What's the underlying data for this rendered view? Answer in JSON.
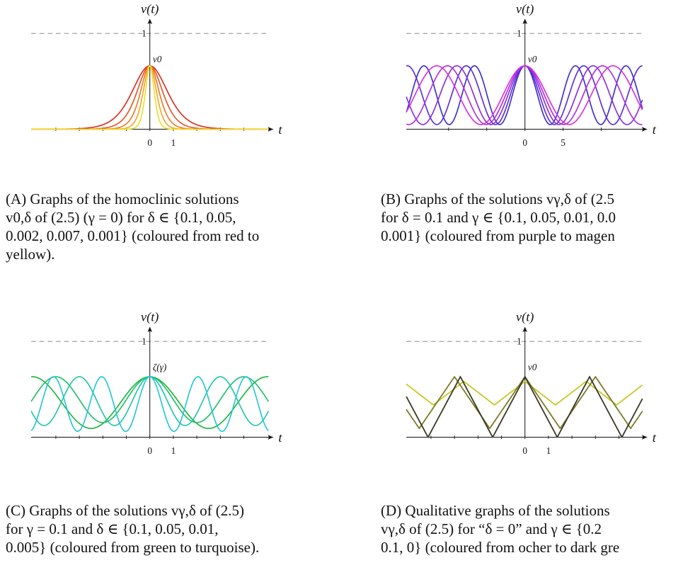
{
  "figures": [
    {
      "key": "a",
      "ylabel": "v(t)",
      "xlabel": "t",
      "one_label": "1",
      "peak_label": "v0",
      "ticks": [
        "0",
        "1"
      ],
      "caption_lines": [
        "(A) Graphs of the homoclinic solutions",
        "v0,δ of (2.5) (γ = 0) for δ ∈ {0.1, 0.05,",
        "0.002, 0.007, 0.001} (coloured from red to",
        "yellow)."
      ],
      "colors": [
        "#d7301f",
        "#e3572a",
        "#ec7a2b",
        "#f3a72a",
        "#e9df2c"
      ]
    },
    {
      "key": "b",
      "ylabel": "v(t)",
      "xlabel": "t",
      "one_label": "1",
      "peak_label": "v0",
      "ticks": [
        "0",
        "5"
      ],
      "caption_lines": [
        "(B) Graphs of the solutions vγ,δ of (2.5",
        "for δ = 0.1 and γ ∈ {0.1, 0.05, 0.01, 0.0",
        "0.001}  (coloured  from purple to magen"
      ],
      "colors": [
        "#3b2fd0",
        "#5b2fd8",
        "#8a2fde",
        "#b22fe0",
        "#d92fe0"
      ]
    },
    {
      "key": "c",
      "ylabel": "v(t)",
      "xlabel": "t",
      "one_label": "1",
      "peak_label": "ζ(γ)",
      "ticks": [
        "0",
        "1"
      ],
      "caption_lines": [
        "(C) Graphs of the solutions vγ,δ of (2.5)",
        "for γ = 0.1 and δ ∈ {0.1, 0.05, 0.01,",
        "0.005} (coloured from green to turquoise)."
      ],
      "colors": [
        "#1fb53c",
        "#20c06a",
        "#22c6a8",
        "#27c6d6"
      ]
    },
    {
      "key": "d",
      "ylabel": "v(t)",
      "xlabel": "t",
      "one_label": "1",
      "peak_label": "v0",
      "ticks": [
        "0",
        "1"
      ],
      "caption_lines": [
        "(D) Qualitative graphs of the solutions",
        "vγ,δ of (2.5) for “δ = 0” and γ ∈ {0.2",
        "0.1, 0} (coloured from ocher to dark gre"
      ],
      "colors": [
        "#c9c72a",
        "#7d7a2a",
        "#3a3a26"
      ]
    }
  ]
}
